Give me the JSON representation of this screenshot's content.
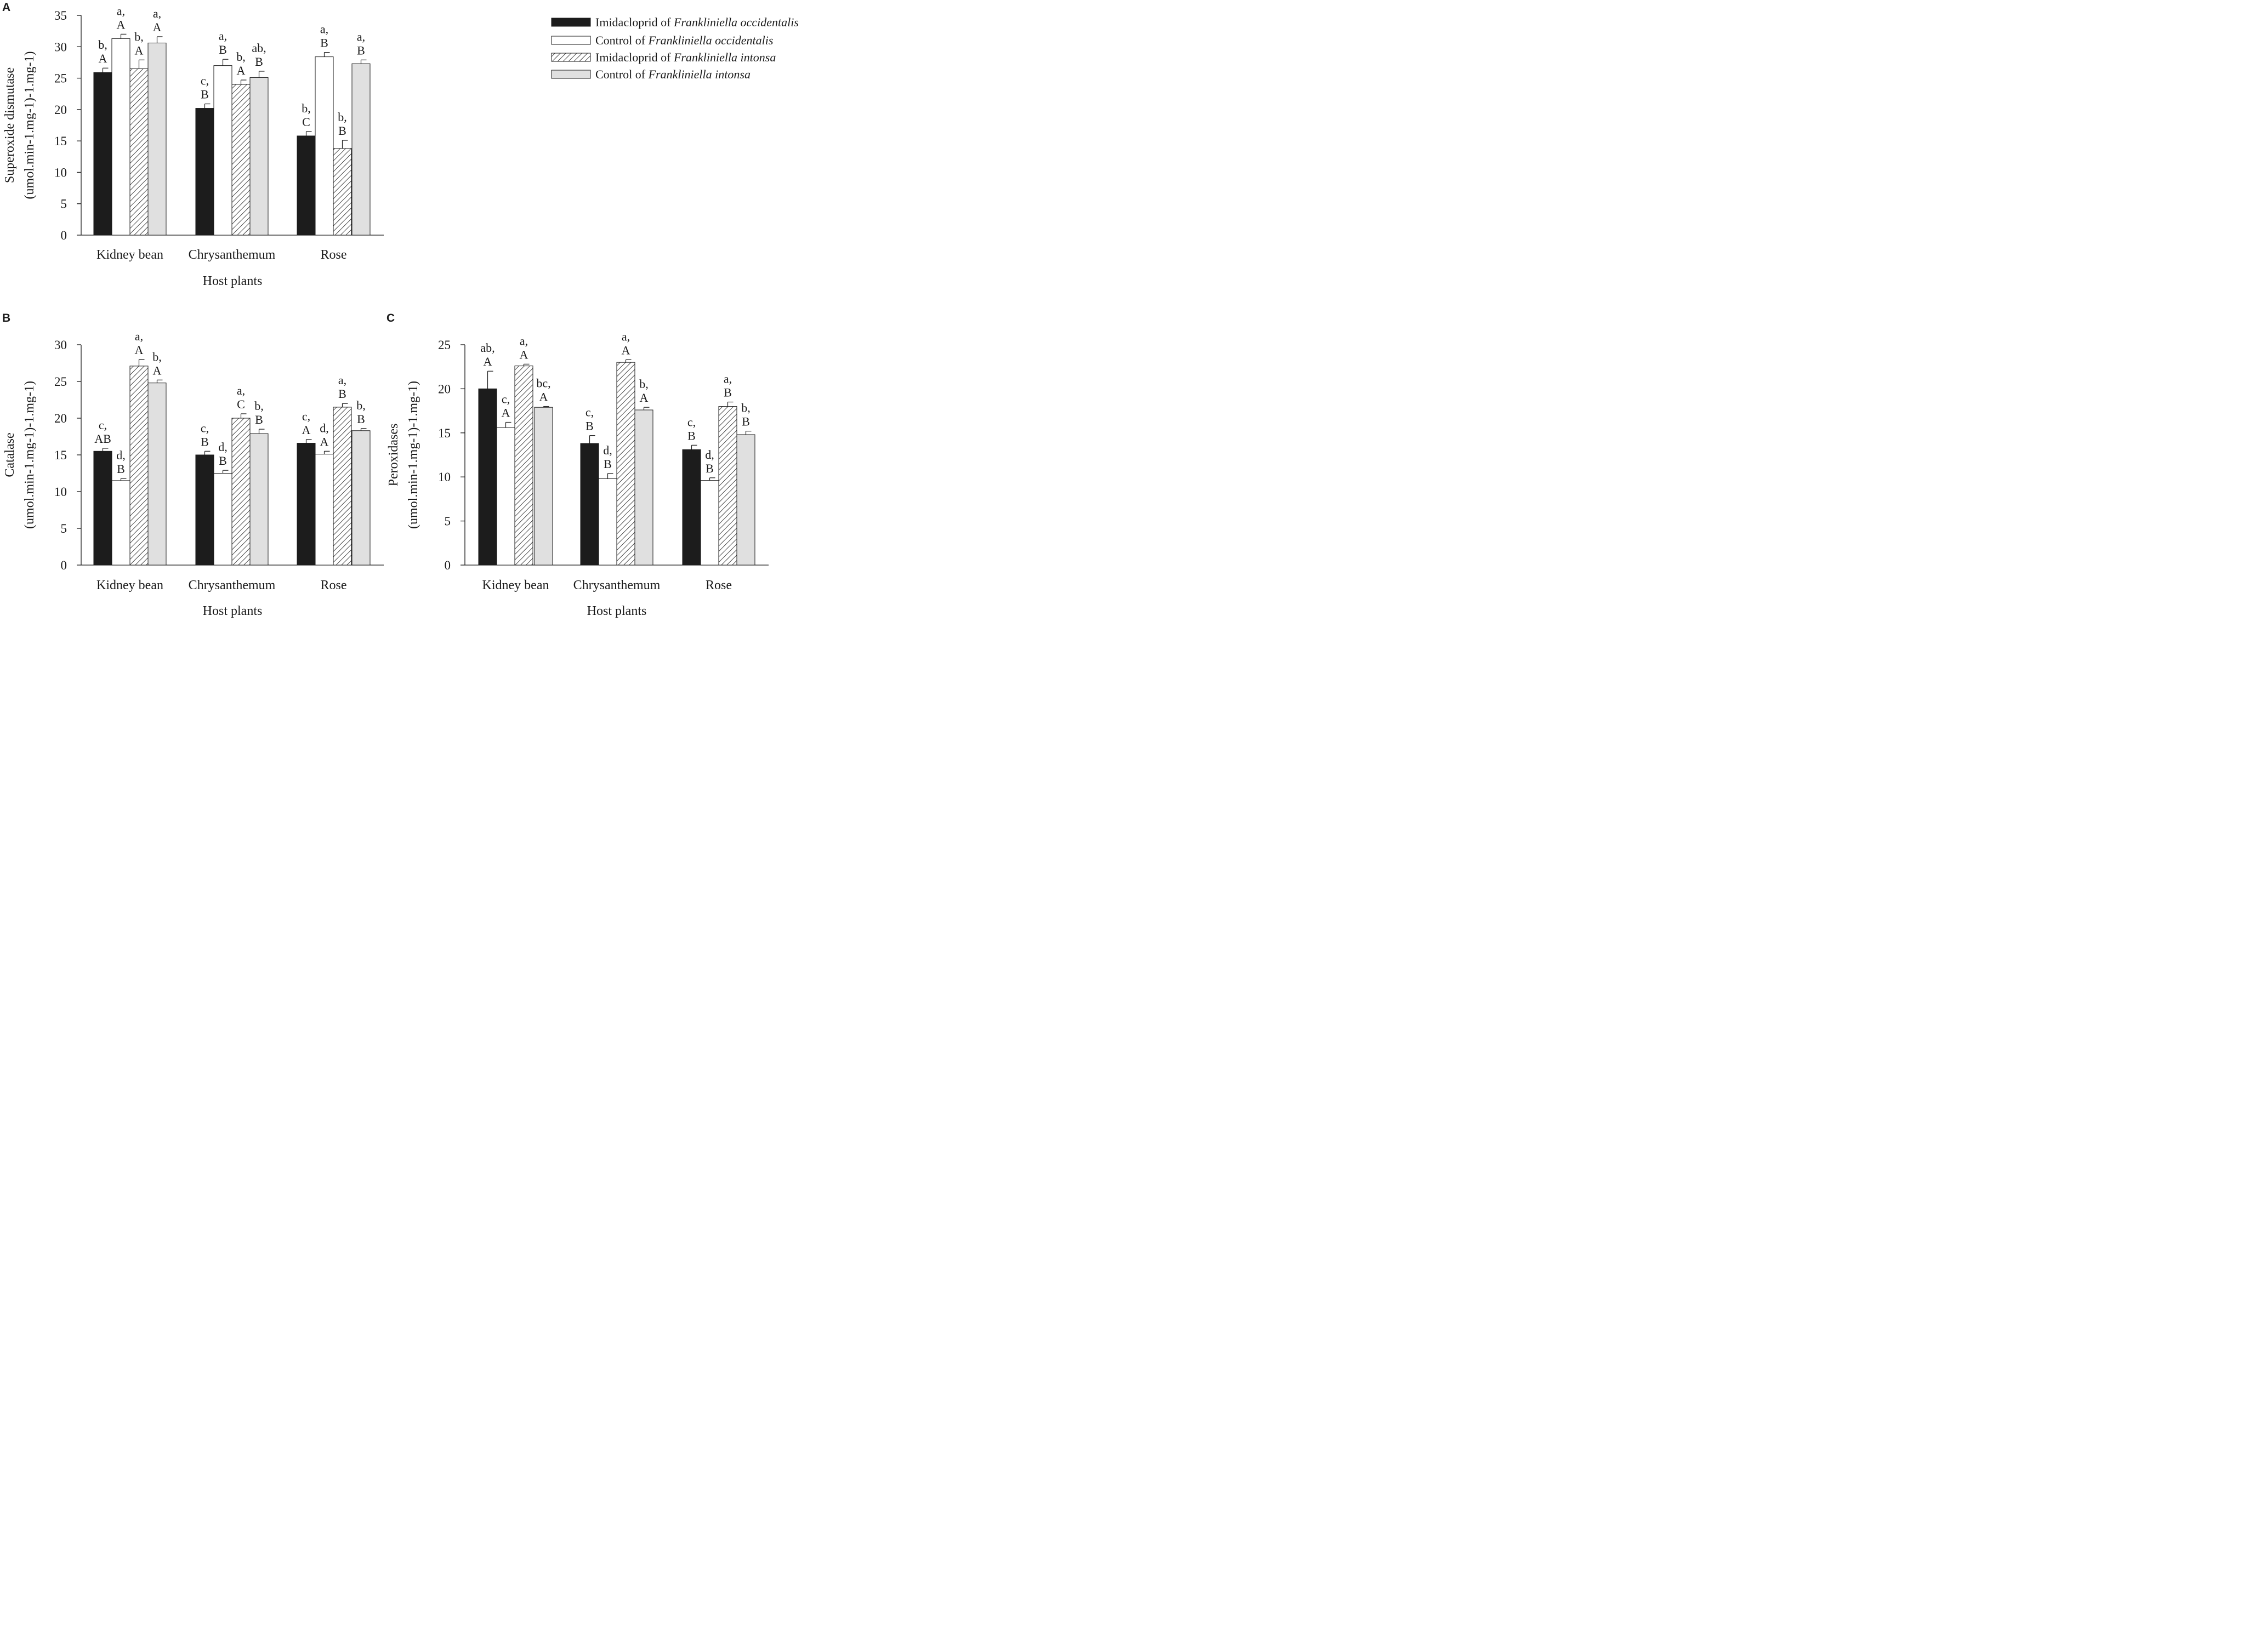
{
  "legend": {
    "entries": [
      {
        "prefix": "Imidacloprid of ",
        "species": "Frankliniella occidentalis",
        "style": "black"
      },
      {
        "prefix": "Control of ",
        "species": "Frankliniella occidentalis",
        "style": "white"
      },
      {
        "prefix": "Imidacloprid of ",
        "species": "Frankliniella intonsa",
        "style": "hatch"
      },
      {
        "prefix": "Control of ",
        "species": "Frankliniella intonsa",
        "style": "grey"
      }
    ]
  },
  "colors": {
    "black": "#1c1c1c",
    "white": "#ffffff",
    "grey": "#e0e0e0",
    "stroke": "#1a1a1a"
  },
  "chart_data": [
    {
      "panel": "A",
      "type": "bar",
      "ylabel_line1": "Superoxide dismutase",
      "ylabel_line2": "(umol.min-1.mg-1)-1.mg-1)",
      "xlabel": "Host plants",
      "categories": [
        "Kidney bean",
        "Chrysanthemum",
        "Rose"
      ],
      "ylim": [
        0,
        35
      ],
      "yticks": [
        0,
        5,
        10,
        15,
        20,
        25,
        30,
        35
      ],
      "series": [
        {
          "name": "Imidacloprid of Frankliniella occidentalis",
          "values": [
            25.9,
            20.2,
            15.8
          ],
          "errors": [
            0.7,
            0.7,
            0.7
          ],
          "labels": [
            [
              "b,",
              "A"
            ],
            [
              "c,",
              "B"
            ],
            [
              "b,",
              "C"
            ]
          ]
        },
        {
          "name": "Control of Frankliniella occidentalis",
          "values": [
            31.3,
            27.0,
            28.4
          ],
          "errors": [
            0.7,
            1.0,
            0.7
          ],
          "labels": [
            [
              "a,",
              "A"
            ],
            [
              "a,",
              "B"
            ],
            [
              "a,",
              "B"
            ]
          ]
        },
        {
          "name": "Imidacloprid of Frankliniella intonsa",
          "values": [
            26.5,
            24.0,
            13.8
          ],
          "errors": [
            1.4,
            0.7,
            1.3
          ],
          "labels": [
            [
              "b,",
              "A"
            ],
            [
              "b,",
              "A"
            ],
            [
              "b,",
              "B"
            ]
          ]
        },
        {
          "name": "Control of Frankliniella intonsa",
          "values": [
            30.6,
            25.1,
            27.3
          ],
          "errors": [
            1.0,
            1.0,
            0.6
          ],
          "labels": [
            [
              "a,",
              "A"
            ],
            [
              "ab,",
              "B"
            ],
            [
              "a,",
              "B"
            ]
          ]
        }
      ]
    },
    {
      "panel": "B",
      "type": "bar",
      "ylabel_line1": "Catalase",
      "ylabel_line2": "(umol.min-1.mg-1)-1.mg-1)",
      "xlabel": "Host plants",
      "categories": [
        "Kidney bean",
        "Chrysanthemum",
        "Rose"
      ],
      "ylim": [
        0,
        30
      ],
      "yticks": [
        0,
        5,
        10,
        15,
        20,
        25,
        30
      ],
      "series": [
        {
          "name": "Imidacloprid of Frankliniella occidentalis",
          "values": [
            15.5,
            15.0,
            16.6
          ],
          "errors": [
            0.4,
            0.5,
            0.5
          ],
          "labels": [
            [
              "c,",
              "AB"
            ],
            [
              "c,",
              "B"
            ],
            [
              "c,",
              "A"
            ]
          ]
        },
        {
          "name": "Control of Frankliniella occidentalis",
          "values": [
            11.5,
            12.5,
            15.1
          ],
          "errors": [
            0.3,
            0.4,
            0.4
          ],
          "labels": [
            [
              "d,",
              "B"
            ],
            [
              "d,",
              "B"
            ],
            [
              "d,",
              "A"
            ]
          ]
        },
        {
          "name": "Imidacloprid of Frankliniella intonsa",
          "values": [
            27.1,
            20.0,
            21.5
          ],
          "errors": [
            0.9,
            0.6,
            0.5
          ],
          "labels": [
            [
              "a,",
              "A"
            ],
            [
              "a,",
              "C"
            ],
            [
              "a,",
              "B"
            ]
          ]
        },
        {
          "name": "Control of Frankliniella intonsa",
          "values": [
            24.8,
            17.9,
            18.3
          ],
          "errors": [
            0.4,
            0.6,
            0.3
          ],
          "labels": [
            [
              "b,",
              "A"
            ],
            [
              "b,",
              "B"
            ],
            [
              "b,",
              "B"
            ]
          ]
        }
      ]
    },
    {
      "panel": "C",
      "type": "bar",
      "ylabel_line1": "Peroxidases",
      "ylabel_line2": "(umol.min-1.mg-1)-1.mg-1)",
      "xlabel": "Host plants",
      "categories": [
        "Kidney bean",
        "Chrysanthemum",
        "Rose"
      ],
      "ylim": [
        0,
        25
      ],
      "yticks": [
        0,
        5,
        10,
        15,
        20,
        25
      ],
      "series": [
        {
          "name": "Imidacloprid of Frankliniella occidentalis",
          "values": [
            20.0,
            13.8,
            13.1
          ],
          "errors": [
            2.0,
            0.9,
            0.5
          ],
          "labels": [
            [
              "ab,",
              "A"
            ],
            [
              "c,",
              "B"
            ],
            [
              "c,",
              "B"
            ]
          ]
        },
        {
          "name": "Control of Frankliniella occidentalis",
          "values": [
            15.6,
            9.8,
            9.6
          ],
          "errors": [
            0.6,
            0.6,
            0.3
          ],
          "labels": [
            [
              "c,",
              "A"
            ],
            [
              "d,",
              "B"
            ],
            [
              "d,",
              "B"
            ]
          ]
        },
        {
          "name": "Imidacloprid of Frankliniella intonsa",
          "values": [
            22.6,
            23.0,
            18.0
          ],
          "errors": [
            0.2,
            0.3,
            0.5
          ],
          "labels": [
            [
              "a,",
              "A"
            ],
            [
              "a,",
              "A"
            ],
            [
              "a,",
              "B"
            ]
          ]
        },
        {
          "name": "Control of Frankliniella intonsa",
          "values": [
            17.9,
            17.6,
            14.8
          ],
          "errors": [
            0.1,
            0.3,
            0.4
          ],
          "labels": [
            [
              "bc,",
              "A"
            ],
            [
              "b,",
              "A"
            ],
            [
              "b,",
              "B"
            ]
          ]
        }
      ]
    }
  ]
}
